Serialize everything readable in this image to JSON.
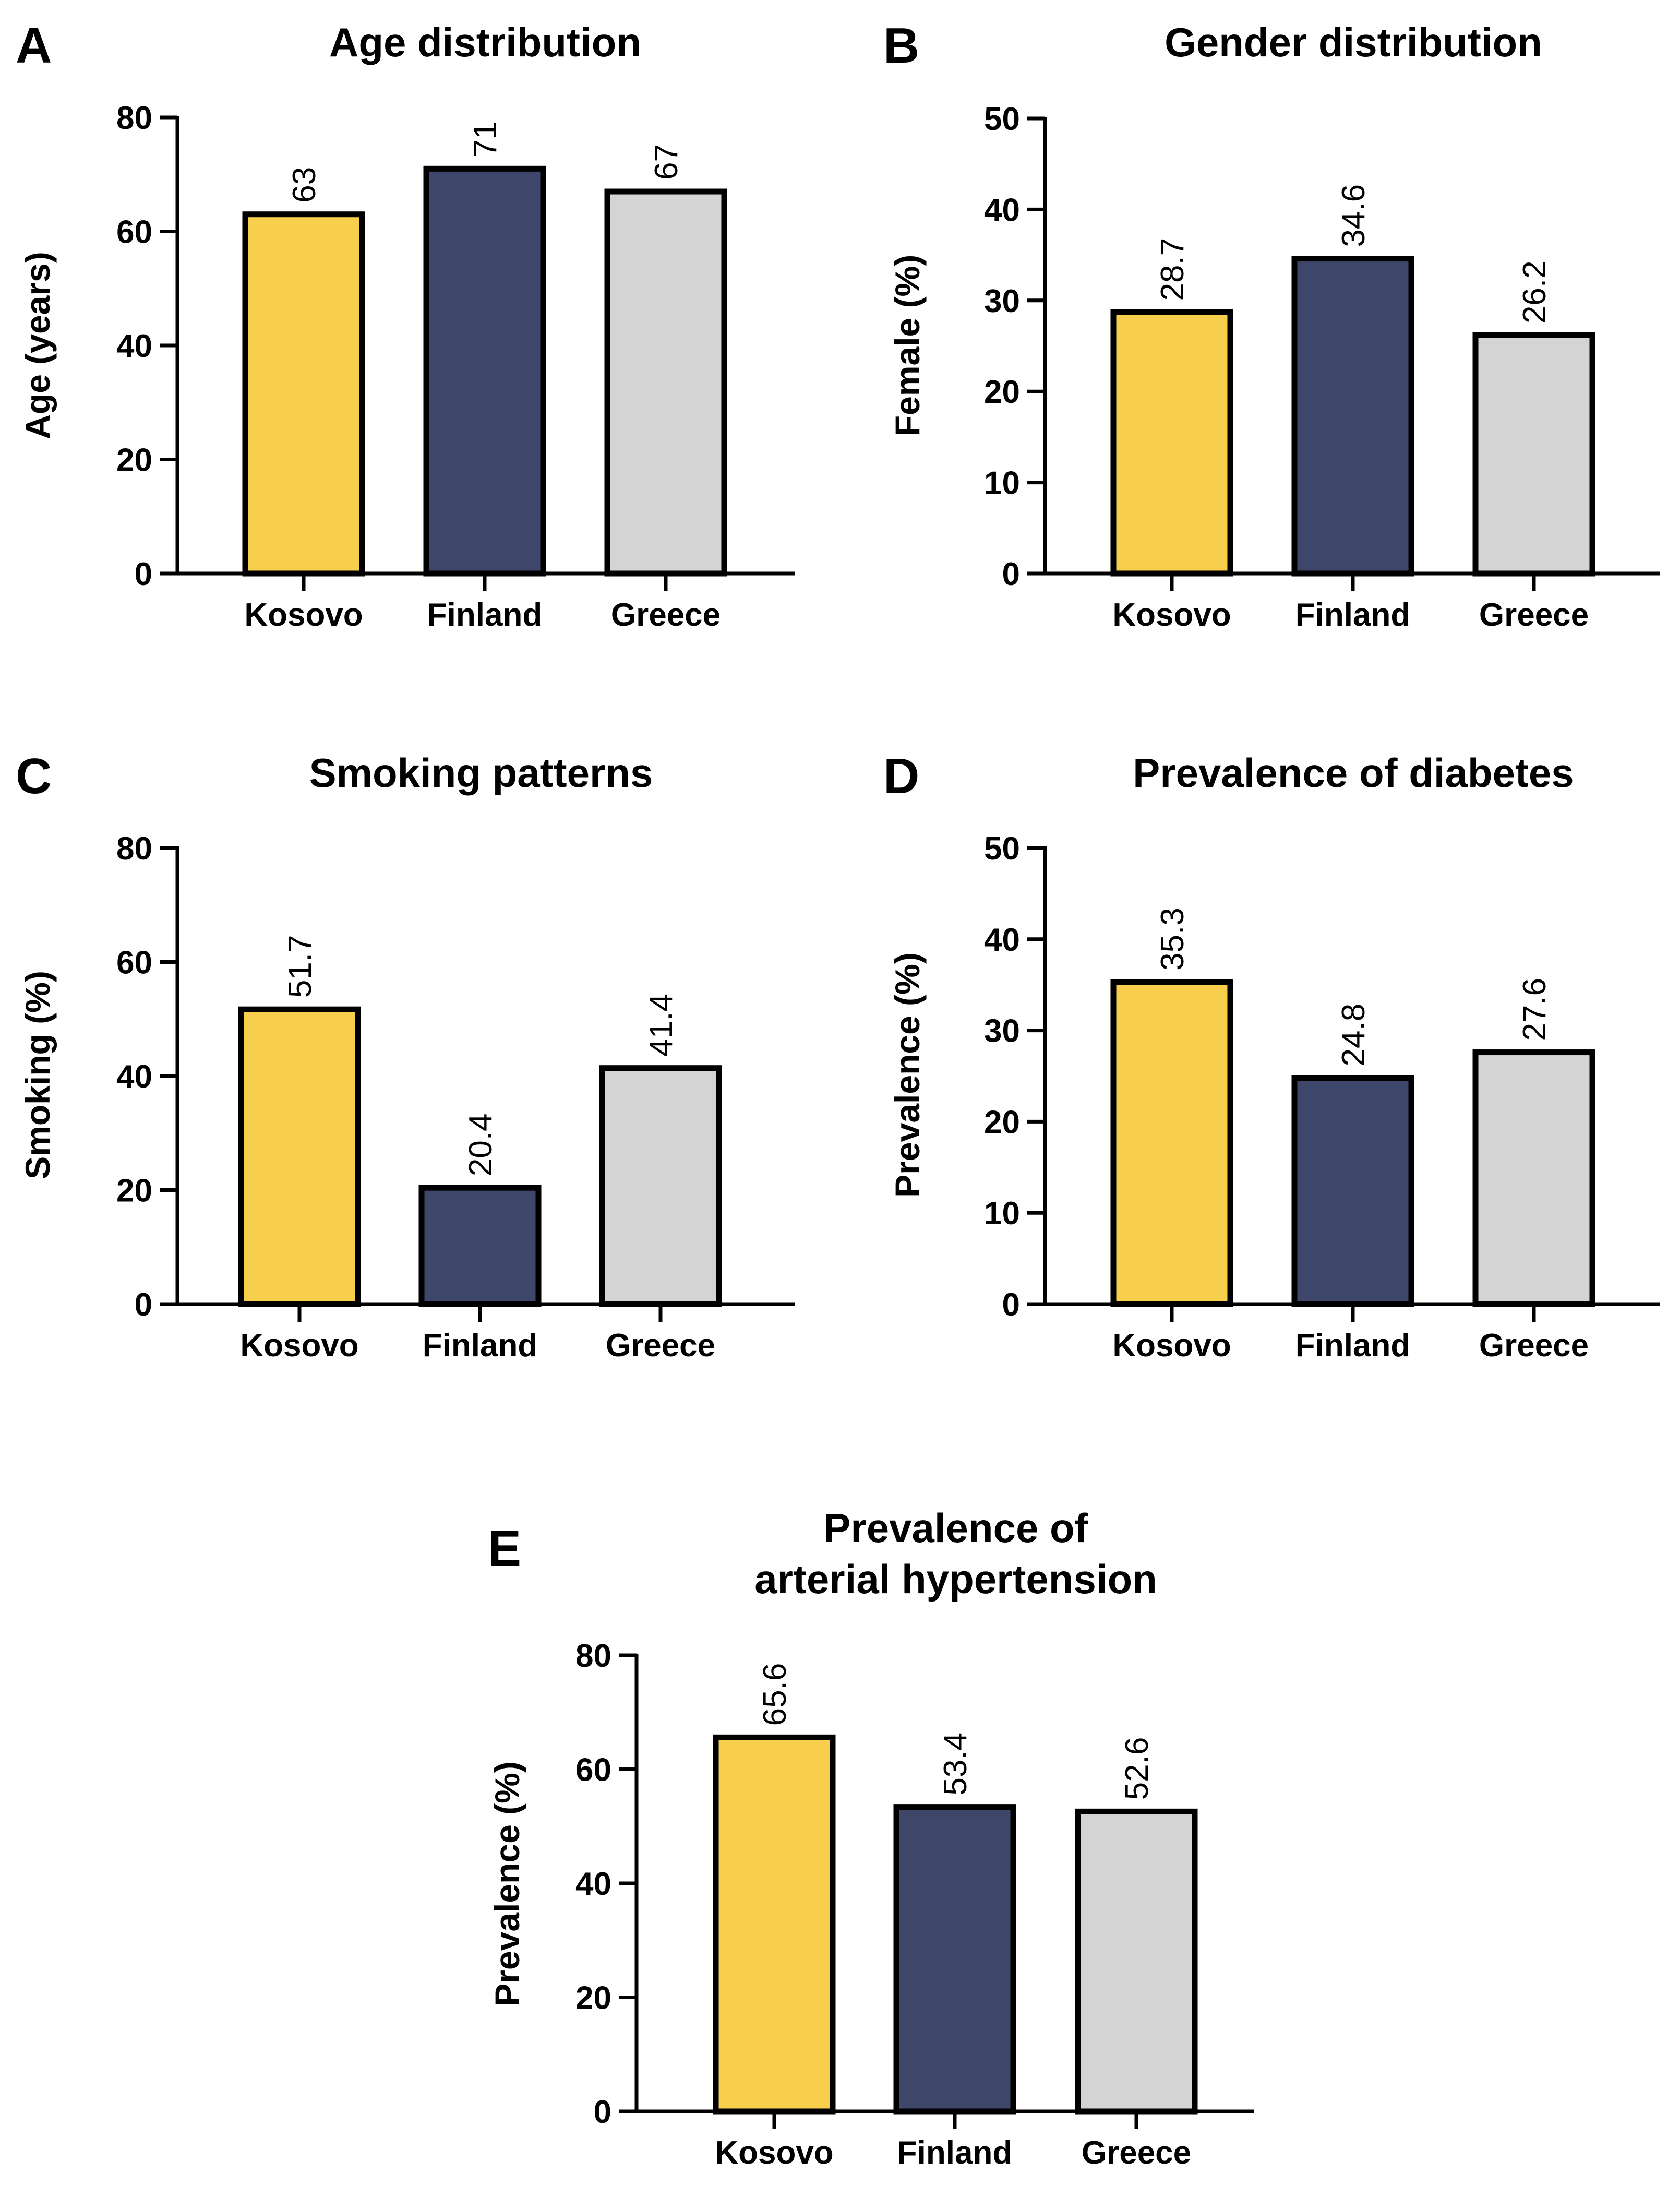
{
  "categories": [
    "Kosovo",
    "Finland",
    "Greece"
  ],
  "colors": {
    "Kosovo": "#f8cf4c",
    "Finland": "#3e4769",
    "Greece": "#d4d4d4",
    "outline": "#000000"
  },
  "chart_data": [
    {
      "panel": "A",
      "type": "bar",
      "title": [
        "Age distribution"
      ],
      "ylabel": "Age (years)",
      "xlabel": "",
      "categories": [
        "Kosovo",
        "Finland",
        "Greece"
      ],
      "values": [
        63,
        71,
        67
      ],
      "value_labels": [
        "63",
        "71",
        "67"
      ],
      "ylim": [
        0,
        80
      ],
      "yticks": [
        0,
        20,
        40,
        60,
        80
      ],
      "grid": false
    },
    {
      "panel": "B",
      "type": "bar",
      "title": [
        "Gender distribution"
      ],
      "ylabel": "Female (%)",
      "xlabel": "",
      "categories": [
        "Kosovo",
        "Finland",
        "Greece"
      ],
      "values": [
        28.7,
        34.6,
        26.2
      ],
      "value_labels": [
        "28.7",
        "34.6",
        "26.2"
      ],
      "ylim": [
        0,
        50
      ],
      "yticks": [
        0,
        10,
        20,
        30,
        40,
        50
      ],
      "grid": false
    },
    {
      "panel": "C",
      "type": "bar",
      "title": [
        "Smoking patterns"
      ],
      "ylabel": "Smoking (%)",
      "xlabel": "",
      "categories": [
        "Kosovo",
        "Finland",
        "Greece"
      ],
      "values": [
        51.7,
        20.4,
        41.4
      ],
      "value_labels": [
        "51.7",
        "20.4",
        "41.4"
      ],
      "ylim": [
        0,
        80
      ],
      "yticks": [
        0,
        20,
        40,
        60,
        80
      ],
      "grid": false
    },
    {
      "panel": "D",
      "type": "bar",
      "title": [
        "Prevalence of diabetes"
      ],
      "ylabel": "Prevalence (%)",
      "xlabel": "",
      "categories": [
        "Kosovo",
        "Finland",
        "Greece"
      ],
      "values": [
        35.3,
        24.8,
        27.6
      ],
      "value_labels": [
        "35.3",
        "24.8",
        "27.6"
      ],
      "ylim": [
        0,
        50
      ],
      "yticks": [
        0,
        10,
        20,
        30,
        40,
        50
      ],
      "grid": false
    },
    {
      "panel": "E",
      "type": "bar",
      "title": [
        "Prevalence of",
        "arterial hypertension"
      ],
      "ylabel": "Prevalence (%)",
      "xlabel": "",
      "categories": [
        "Kosovo",
        "Finland",
        "Greece"
      ],
      "values": [
        65.6,
        53.4,
        52.6
      ],
      "value_labels": [
        "65.6",
        "53.4",
        "52.6"
      ],
      "ylim": [
        0,
        80
      ],
      "yticks": [
        0,
        20,
        40,
        60,
        80
      ],
      "grid": false
    }
  ]
}
